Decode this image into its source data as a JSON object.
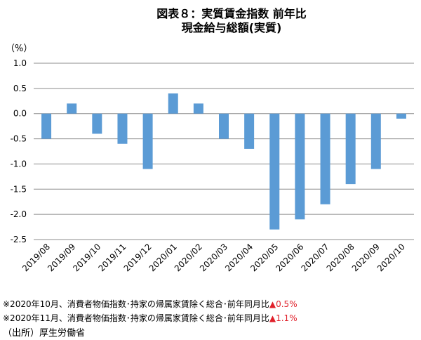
{
  "chart_data": {
    "type": "bar",
    "title": "図表８：実質賃金指数 前年比",
    "subtitle": "現金給与総額(実質)",
    "ylabel": "（%）",
    "xlabel": "",
    "categories": [
      "2019/08",
      "2019/09",
      "2019/10",
      "2019/11",
      "2019/12",
      "2020/01",
      "2020/02",
      "2020/03",
      "2020/04",
      "2020/05",
      "2020/06",
      "2020/07",
      "2020/08",
      "2020/09",
      "2020/10"
    ],
    "values": [
      -0.5,
      0.2,
      -0.4,
      -0.6,
      -1.1,
      0.4,
      0.2,
      -0.5,
      -0.7,
      -2.3,
      -2.1,
      -1.8,
      -1.4,
      -1.1,
      -0.1
    ],
    "ylim": [
      -2.5,
      1.0
    ],
    "yticks": [
      "1.0",
      "0.5",
      "0.0",
      "-0.5",
      "-1.0",
      "-1.5",
      "-2.0",
      "-2.5"
    ],
    "grid": true,
    "bar_color": "#5b9bd5"
  },
  "notes": [
    {
      "text": "※2020年10月、消費者物価指数･持家の帰属家賃除く総合･前年同月比",
      "value": "▲0.5%"
    },
    {
      "text": "※2020年11月、消費者物価指数･持家の帰属家賃除く総合･前年同月比",
      "value": "▲1.1%"
    }
  ],
  "source": "（出所）厚生労働省"
}
